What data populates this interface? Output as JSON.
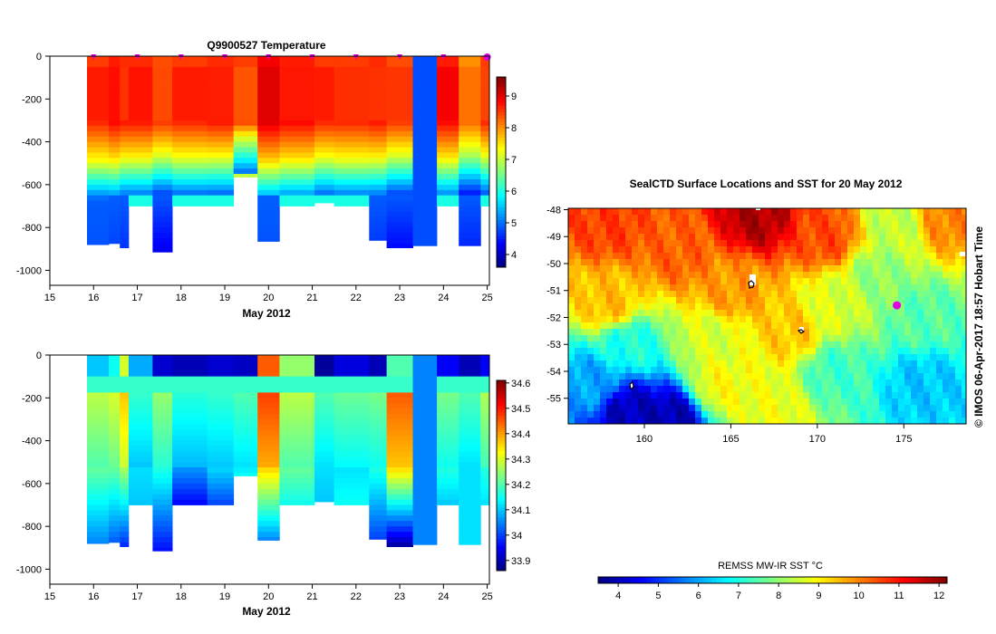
{
  "chart_data": [
    {
      "type": "heatmap",
      "title": "Q9900527  Temperature",
      "xlabel": "May 2012",
      "ylabel": "",
      "xlim": [
        15,
        25.05
      ],
      "ylim": [
        -1070,
        0
      ],
      "xticks": [
        15,
        16,
        17,
        18,
        19,
        20,
        21,
        22,
        23,
        24,
        25
      ],
      "yticks": [
        0,
        -200,
        -400,
        -600,
        -800,
        -1000
      ],
      "colorbar": {
        "min": 3.6,
        "max": 9.6,
        "ticks": [
          4,
          5,
          6,
          7,
          8,
          9
        ]
      },
      "profile_times": [
        16.0,
        17.0,
        18.0,
        19.0,
        20.0,
        21.0,
        22.0,
        23.0,
        24.0,
        25.0
      ],
      "profiles": [
        {
          "t0": 15.85,
          "t1": 16.35,
          "depth": 880,
          "surf": 8.5,
          "warm": 8.7,
          "thermo": 590,
          "deep": 4.8
        },
        {
          "t0": 16.35,
          "t1": 16.6,
          "depth": 875,
          "surf": 8.7,
          "warm": 8.9,
          "thermo": 580,
          "deep": 4.7
        },
        {
          "t0": 16.6,
          "t1": 16.8,
          "depth": 895,
          "surf": 8.6,
          "warm": 8.8,
          "thermo": 570,
          "deep": 4.6
        },
        {
          "t0": 16.8,
          "t1": 17.35,
          "depth": 700,
          "surf": 8.6,
          "warm": 8.8,
          "thermo": 570,
          "deep": 6.0
        },
        {
          "t0": 17.35,
          "t1": 17.8,
          "depth": 915,
          "surf": 8.4,
          "warm": 8.6,
          "thermo": 560,
          "deep": 4.2
        },
        {
          "t0": 17.8,
          "t1": 18.6,
          "depth": 700,
          "surf": 8.5,
          "warm": 8.7,
          "thermo": 570,
          "deep": 6.0
        },
        {
          "t0": 18.6,
          "t1": 19.2,
          "depth": 700,
          "surf": 8.6,
          "warm": 8.8,
          "thermo": 560,
          "deep": 6.0
        },
        {
          "t0": 19.2,
          "t1": 19.75,
          "depth": 565,
          "surf": 8.5,
          "warm": 8.6,
          "thermo": 480,
          "deep": 7.0
        },
        {
          "t0": 19.75,
          "t1": 20.25,
          "depth": 865,
          "surf": 8.9,
          "warm": 9.1,
          "thermo": 580,
          "deep": 4.8
        },
        {
          "t0": 20.25,
          "t1": 21.05,
          "depth": 700,
          "surf": 8.7,
          "warm": 8.9,
          "thermo": 580,
          "deep": 6.0
        },
        {
          "t0": 21.05,
          "t1": 21.5,
          "depth": 685,
          "surf": 8.5,
          "warm": 8.7,
          "thermo": 570,
          "deep": 6.0
        },
        {
          "t0": 21.5,
          "t1": 22.3,
          "depth": 700,
          "surf": 8.5,
          "warm": 8.7,
          "thermo": 580,
          "deep": 6.0
        },
        {
          "t0": 22.3,
          "t1": 22.7,
          "depth": 860,
          "surf": 8.6,
          "warm": 8.8,
          "thermo": 570,
          "deep": 4.6
        },
        {
          "t0": 22.7,
          "t1": 23.3,
          "depth": 895,
          "surf": 8.4,
          "warm": 8.6,
          "thermo": 560,
          "deep": 4.3
        },
        {
          "t0": 23.3,
          "t1": 23.85,
          "depth": 885,
          "surf": 4.8,
          "warm": 4.8,
          "thermo": 0,
          "deep": 4.8
        },
        {
          "t0": 23.85,
          "t1": 24.35,
          "depth": 700,
          "surf": 8.7,
          "warm": 8.9,
          "thermo": 570,
          "deep": 6.0
        },
        {
          "t0": 24.35,
          "t1": 24.85,
          "depth": 885,
          "surf": 8.0,
          "warm": 8.3,
          "thermo": 560,
          "deep": 4.5
        },
        {
          "t0": 24.85,
          "t1": 25.05,
          "depth": 700,
          "surf": 8.5,
          "warm": 8.7,
          "thermo": 560,
          "deep": 6.0
        }
      ]
    },
    {
      "type": "heatmap",
      "title": "",
      "xlabel": "May 2012",
      "ylabel": "",
      "xlim": [
        15,
        25.05
      ],
      "ylim": [
        -1070,
        0
      ],
      "xticks": [
        15,
        16,
        17,
        18,
        19,
        20,
        21,
        22,
        23,
        24,
        25
      ],
      "yticks": [
        0,
        -200,
        -400,
        -600,
        -800,
        -1000
      ],
      "colorbar": {
        "min": 33.86,
        "max": 34.61,
        "ticks": [
          33.9,
          34,
          34.1,
          34.2,
          34.3,
          34.4,
          34.5,
          34.6
        ]
      },
      "profiles": [
        {
          "t0": 15.85,
          "t1": 16.35,
          "depth": 880,
          "top": 34.1,
          "mid": 34.3,
          "deep": 34.05
        },
        {
          "t0": 16.35,
          "t1": 16.6,
          "depth": 875,
          "top": 34.15,
          "mid": 34.3,
          "deep": 34.02
        },
        {
          "t0": 16.6,
          "t1": 16.8,
          "depth": 895,
          "top": 34.3,
          "mid": 34.35,
          "deep": 33.98
        },
        {
          "t0": 16.8,
          "t1": 17.35,
          "depth": 700,
          "top": 34.08,
          "mid": 34.2,
          "deep": 34.1
        },
        {
          "t0": 17.35,
          "t1": 17.8,
          "depth": 915,
          "top": 33.92,
          "mid": 34.25,
          "deep": 33.96
        },
        {
          "t0": 17.8,
          "t1": 18.6,
          "depth": 700,
          "top": 33.9,
          "mid": 34.15,
          "deep": 33.95
        },
        {
          "t0": 18.6,
          "t1": 19.2,
          "depth": 700,
          "top": 33.92,
          "mid": 34.2,
          "deep": 34.0
        },
        {
          "t0": 19.2,
          "t1": 19.75,
          "depth": 565,
          "top": 33.91,
          "mid": 34.2,
          "deep": 34.15
        },
        {
          "t0": 19.75,
          "t1": 20.25,
          "depth": 865,
          "top": 34.45,
          "mid": 34.45,
          "deep": 34.05
        },
        {
          "t0": 20.25,
          "t1": 21.05,
          "depth": 700,
          "top": 34.25,
          "mid": 34.3,
          "deep": 34.15
        },
        {
          "t0": 21.05,
          "t1": 21.5,
          "depth": 685,
          "top": 33.88,
          "mid": 34.2,
          "deep": 34.1
        },
        {
          "t0": 21.5,
          "t1": 22.3,
          "depth": 700,
          "top": 33.93,
          "mid": 34.2,
          "deep": 34.15
        },
        {
          "t0": 22.3,
          "t1": 22.7,
          "depth": 860,
          "top": 33.9,
          "mid": 34.25,
          "deep": 34.0
        },
        {
          "t0": 22.7,
          "t1": 23.3,
          "depth": 895,
          "top": 34.2,
          "mid": 34.45,
          "deep": 33.88
        },
        {
          "t0": 23.3,
          "t1": 23.85,
          "depth": 885,
          "top": 34.05,
          "mid": 34.05,
          "deep": 34.05
        },
        {
          "t0": 23.85,
          "t1": 24.35,
          "depth": 700,
          "top": 33.95,
          "mid": 34.25,
          "deep": 34.1
        },
        {
          "t0": 24.35,
          "t1": 24.85,
          "depth": 885,
          "top": 33.9,
          "mid": 34.2,
          "deep": 34.12
        },
        {
          "t0": 24.85,
          "t1": 25.05,
          "depth": 700,
          "top": 33.95,
          "mid": 34.25,
          "deep": 34.12
        }
      ]
    },
    {
      "type": "heatmap",
      "title": "SealCTD Surface Locations and SST for 20 May 2012",
      "xlabel": "",
      "ylabel": "",
      "xlim": [
        155.6,
        178.6
      ],
      "ylim": [
        -55.95,
        -47.95
      ],
      "xticks": [
        160,
        165,
        170,
        175
      ],
      "yticks": [
        -48,
        -49,
        -50,
        -51,
        -52,
        -53,
        -54,
        -55
      ],
      "colorbar": {
        "label": "REMSS MW-IR SST °C",
        "min": 3.5,
        "max": 12.2,
        "ticks": [
          4,
          5,
          6,
          7,
          8,
          9,
          10,
          11,
          12
        ]
      },
      "current_position": {
        "lon": 174.6,
        "lat": -51.55
      },
      "sst_anchors": [
        {
          "lon": 166.5,
          "lat": -48.2,
          "sst": 11.8
        },
        {
          "lon": 158.0,
          "lat": -48.5,
          "sst": 10.6
        },
        {
          "lon": 162.0,
          "lat": -49.5,
          "sst": 10.3
        },
        {
          "lon": 170.5,
          "lat": -49.0,
          "sst": 10.5
        },
        {
          "lon": 174.5,
          "lat": -48.5,
          "sst": 8.4
        },
        {
          "lon": 177.5,
          "lat": -48.3,
          "sst": 10.0
        },
        {
          "lon": 165.0,
          "lat": -51.0,
          "sst": 9.8
        },
        {
          "lon": 168.5,
          "lat": -52.5,
          "sst": 9.4
        },
        {
          "lon": 158.0,
          "lat": -51.5,
          "sst": 9.5
        },
        {
          "lon": 159.0,
          "lat": -53.0,
          "sst": 7.0
        },
        {
          "lon": 157.0,
          "lat": -54.5,
          "sst": 6.0
        },
        {
          "lon": 159.0,
          "lat": -55.5,
          "sst": 4.0
        },
        {
          "lon": 161.5,
          "lat": -55.8,
          "sst": 3.9
        },
        {
          "lon": 164.5,
          "lat": -54.5,
          "sst": 8.9
        },
        {
          "lon": 167.5,
          "lat": -55.5,
          "sst": 8.8
        },
        {
          "lon": 171.0,
          "lat": -54.0,
          "sst": 7.3
        },
        {
          "lon": 173.5,
          "lat": -50.5,
          "sst": 8.0
        },
        {
          "lon": 176.0,
          "lat": -52.0,
          "sst": 7.5
        },
        {
          "lon": 176.0,
          "lat": -54.5,
          "sst": 6.3
        },
        {
          "lon": 171.0,
          "lat": -51.5,
          "sst": 8.6
        },
        {
          "lon": 164.0,
          "lat": -52.8,
          "sst": 8.6
        }
      ]
    }
  ],
  "credit": "©  IMOS 06-Apr-2017 18:57 Hobart Time",
  "colors": {
    "position_marker": "#e000e0",
    "missing_land": "#ffffff"
  }
}
